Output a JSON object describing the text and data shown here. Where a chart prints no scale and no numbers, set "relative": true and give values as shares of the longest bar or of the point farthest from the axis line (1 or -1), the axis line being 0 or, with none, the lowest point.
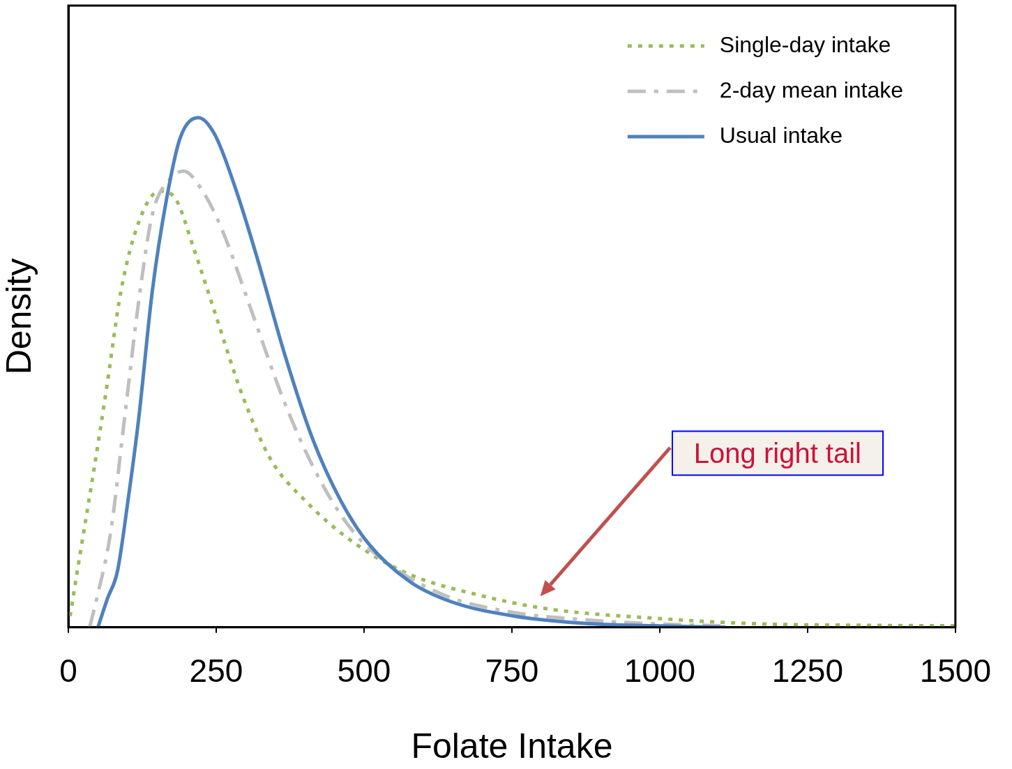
{
  "chart_data": {
    "type": "line",
    "relative": true,
    "xlabel": "Folate Intake",
    "ylabel": "Density",
    "xlim": [
      0,
      1500
    ],
    "xticks": [
      0,
      250,
      500,
      750,
      1000,
      1250,
      1500
    ],
    "legend": "top right",
    "marker": "none",
    "grid": false,
    "series": [
      {
        "name": "Single-day intake",
        "color": "#9bbb59",
        "line_style": "dotted",
        "x": [
          3,
          19,
          42,
          66,
          89,
          119,
          154,
          180,
          213,
          248,
          295,
          342,
          401,
          483,
          577,
          695,
          812,
          989,
          1165,
          1341,
          1500
        ],
        "values": [
          0.022,
          0.138,
          0.3,
          0.48,
          0.66,
          0.795,
          0.856,
          0.843,
          0.74,
          0.617,
          0.453,
          0.33,
          0.248,
          0.166,
          0.104,
          0.063,
          0.036,
          0.018,
          0.007,
          0.004,
          0.003
        ]
      },
      {
        "name": "2-day mean intake",
        "color": "#bfbfbf",
        "line_style": "dashdot",
        "x": [
          36,
          48,
          72,
          95,
          119,
          142,
          172,
          195,
          225,
          260,
          307,
          366,
          425,
          483,
          542,
          636,
          754,
          871,
          989,
          1106
        ],
        "values": [
          0,
          0.056,
          0.19,
          0.41,
          0.64,
          0.81,
          0.88,
          0.895,
          0.86,
          0.78,
          0.63,
          0.44,
          0.29,
          0.186,
          0.124,
          0.063,
          0.029,
          0.015,
          0.007,
          0.003
        ]
      },
      {
        "name": "Usual intake",
        "color": "#4f81bd",
        "line_style": "solid",
        "x": [
          50,
          66,
          83,
          101,
          119,
          142,
          166,
          189,
          220,
          248,
          283,
          318,
          366,
          413,
          460,
          507,
          577,
          648,
          754,
          871,
          989,
          1112
        ],
        "values": [
          0,
          0.056,
          0.11,
          0.25,
          0.41,
          0.66,
          0.84,
          0.96,
          1,
          0.966,
          0.86,
          0.73,
          0.535,
          0.37,
          0.25,
          0.165,
          0.09,
          0.05,
          0.022,
          0.008,
          0.003,
          0
        ]
      }
    ],
    "annotations": [
      "Long right tail"
    ]
  }
}
